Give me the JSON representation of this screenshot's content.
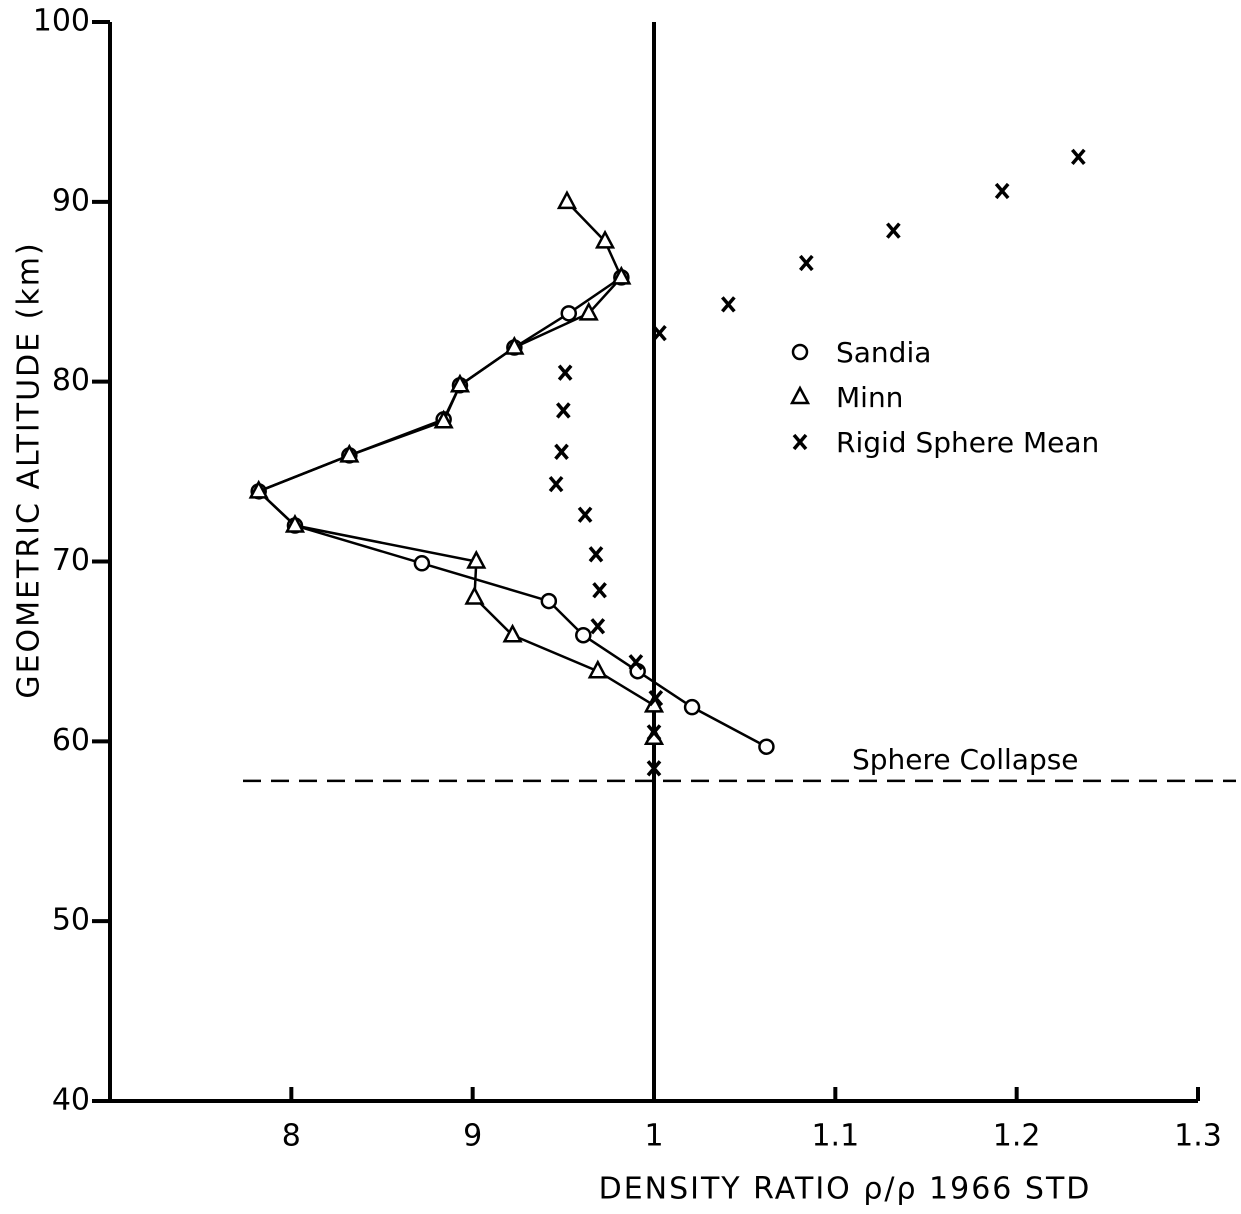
{
  "chart_data": {
    "type": "scatter",
    "xlabel": "DENSITY RATIO ρ/ρ 1966 STD",
    "ylabel": "GEOMETRIC ALTITUDE (km)",
    "xlim": [
      0.7,
      1.3
    ],
    "ylim": [
      40,
      100
    ],
    "xticks": [
      {
        "value": 0.8,
        "label": "8"
      },
      {
        "value": 0.9,
        "label": "9"
      },
      1,
      1.1,
      1.2,
      1.3
    ],
    "yticks": [
      40,
      50,
      60,
      70,
      80,
      90,
      100
    ],
    "reference_x": 1,
    "annotation": {
      "text": "Sphere Collapse",
      "y": 57.8
    },
    "legend": "right",
    "series": [
      {
        "name": "Sandia",
        "marker": "circle",
        "line": true,
        "color": "#000000",
        "x": [
          0.982,
          0.953,
          0.923,
          0.893,
          0.884,
          0.832,
          0.782,
          0.802,
          0.872,
          0.942,
          0.961,
          0.991,
          1.021,
          1.062
        ],
        "values": [
          85.8,
          83.8,
          81.9,
          79.8,
          77.9,
          75.9,
          73.9,
          72,
          69.9,
          67.8,
          65.9,
          63.9,
          61.9,
          59.7
        ]
      },
      {
        "name": "Minn",
        "marker": "triangle",
        "line": true,
        "color": "#000000",
        "x": [
          0.952,
          0.973,
          0.982,
          0.964,
          0.923,
          0.893,
          0.884,
          0.832,
          0.782,
          0.802,
          0.902,
          0.901,
          0.922,
          0.969,
          1.0,
          1.0
        ],
        "values": [
          90,
          87.8,
          85.8,
          83.8,
          81.9,
          79.8,
          77.8,
          75.9,
          73.9,
          72,
          70,
          68,
          65.9,
          63.9,
          62,
          60.2
        ]
      },
      {
        "name": "Rigid Sphere Mean",
        "marker": "x",
        "line": false,
        "color": "#000000",
        "x": [
          1.234,
          1.192,
          1.132,
          1.084,
          1.041,
          1.003,
          0.951,
          0.95,
          0.949,
          0.946,
          0.962,
          0.968,
          0.97,
          0.969,
          0.99,
          1.001,
          1.0,
          1.0
        ],
        "values": [
          92.5,
          90.6,
          88.4,
          86.6,
          84.3,
          82.7,
          80.5,
          78.4,
          76.1,
          74.3,
          72.6,
          70.4,
          68.4,
          66.4,
          64.4,
          62.4,
          60.5,
          58.5
        ]
      }
    ]
  }
}
